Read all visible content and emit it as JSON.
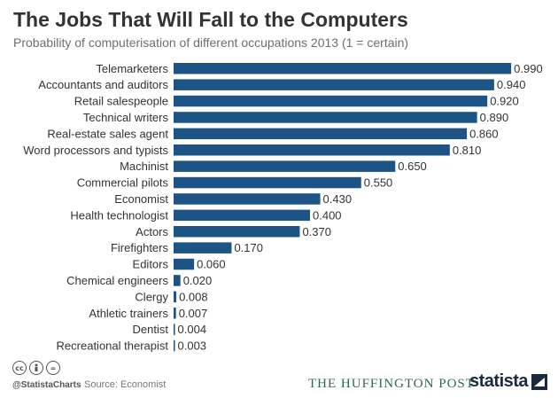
{
  "header": {
    "title": "The Jobs That Will Fall to the Computers",
    "subtitle": "Probability of computerisation of different occupations 2013 (1 = certain)"
  },
  "chart_data": {
    "type": "bar",
    "orientation": "horizontal",
    "categories": [
      "Telemarketers",
      "Accountants and auditors",
      "Retail salespeople",
      "Technical writers",
      "Real-estate sales agent",
      "Word processors and typists",
      "Machinist",
      "Commercial pilots",
      "Economist",
      "Health technologist",
      "Actors",
      "Firefighters",
      "Editors",
      "Chemical engineers",
      "Clergy",
      "Athletic trainers",
      "Dentist",
      "Recreational therapist"
    ],
    "values": [
      0.99,
      0.94,
      0.92,
      0.89,
      0.86,
      0.81,
      0.65,
      0.55,
      0.43,
      0.4,
      0.37,
      0.17,
      0.06,
      0.02,
      0.008,
      0.007,
      0.004,
      0.003
    ],
    "value_labels": [
      "0.990",
      "0.940",
      "0.920",
      "0.890",
      "0.860",
      "0.810",
      "0.650",
      "0.550",
      "0.430",
      "0.400",
      "0.370",
      "0.170",
      "0.060",
      "0.020",
      "0.008",
      "0.007",
      "0.004",
      "0.003"
    ],
    "title": "The Jobs That Will Fall to the Computers",
    "subtitle": "Probability of computerisation of different occupations 2013 (1 = certain)",
    "xlim": [
      0,
      1
    ],
    "grid": false,
    "bar_color": "#1c5485"
  },
  "footer": {
    "cc_icons": [
      "cc-icon",
      "by-icon",
      "nd-icon"
    ],
    "handle": "@StatistaCharts",
    "source": "Source: Economist",
    "partner": "THE HUFFINGTON POST",
    "brand": "statista"
  }
}
